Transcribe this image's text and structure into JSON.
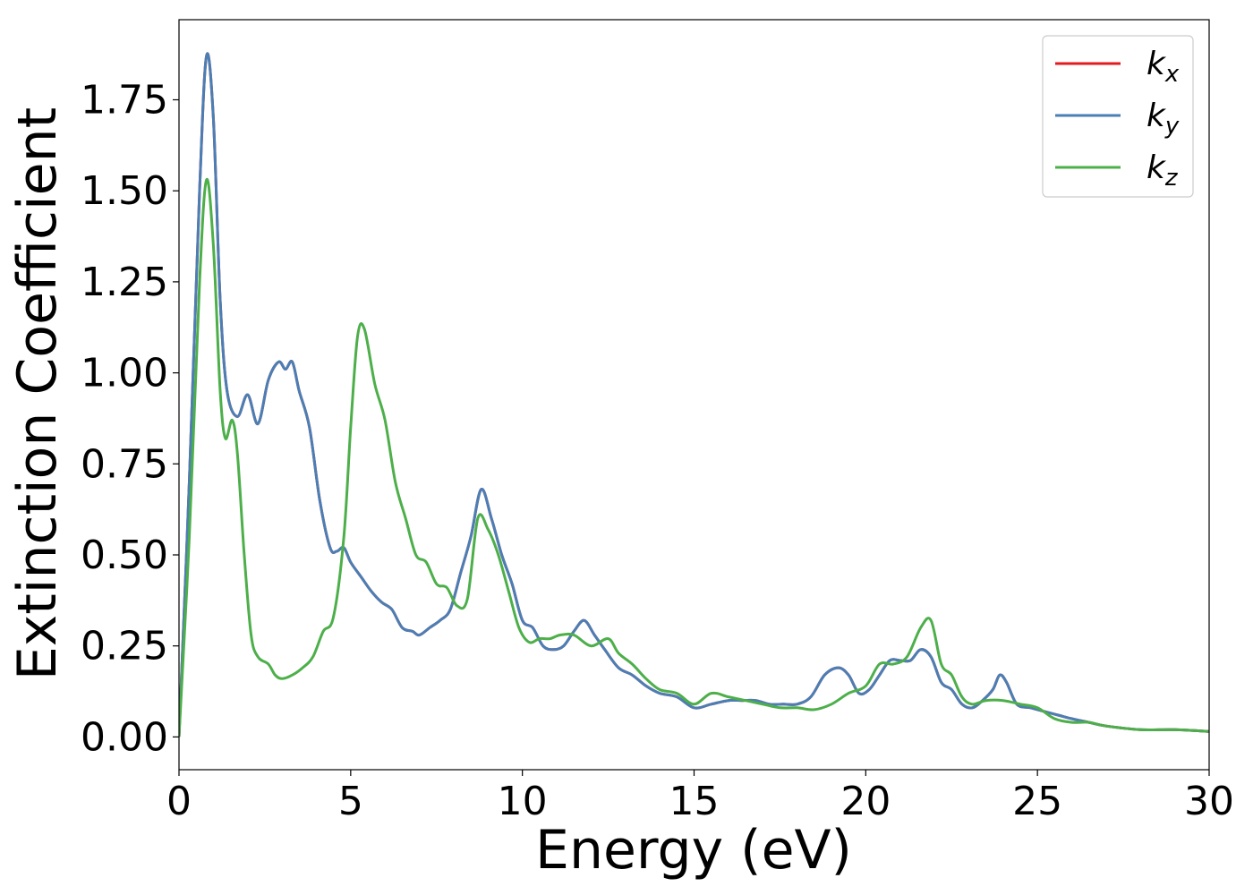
{
  "chart_data": {
    "type": "line",
    "title": "",
    "xlabel": "Energy (eV)",
    "ylabel": "Extinction Coefficient",
    "xlim": [
      0,
      30
    ],
    "ylim": [
      -0.09,
      1.97
    ],
    "xticks": [
      0,
      5,
      10,
      15,
      20,
      25,
      30
    ],
    "xtick_labels": [
      "0",
      "5",
      "10",
      "15",
      "20",
      "25",
      "30"
    ],
    "yticks": [
      0.0,
      0.25,
      0.5,
      0.75,
      1.0,
      1.25,
      1.5,
      1.75
    ],
    "ytick_labels": [
      "0.00",
      "0.25",
      "0.50",
      "0.75",
      "1.00",
      "1.25",
      "1.50",
      "1.75"
    ],
    "grid": false,
    "legend_position": "top-right",
    "series": [
      {
        "name": "k",
        "subscript": "x",
        "color": "#e41a1c",
        "x": [
          0,
          0.3,
          0.6,
          0.8,
          1.0,
          1.2,
          1.4,
          1.7,
          2.0,
          2.3,
          2.6,
          2.9,
          3.1,
          3.3,
          3.5,
          3.8,
          4.1,
          4.4,
          4.6,
          4.8,
          5.0,
          5.3,
          5.6,
          5.9,
          6.2,
          6.5,
          6.8,
          7.0,
          7.3,
          7.6,
          7.9,
          8.2,
          8.5,
          8.8,
          9.1,
          9.4,
          9.7,
          10.0,
          10.3,
          10.6,
          10.9,
          11.2,
          11.5,
          11.8,
          12.1,
          12.4,
          12.8,
          13.2,
          13.6,
          14.0,
          14.5,
          15.0,
          15.5,
          16.0,
          16.4,
          16.8,
          17.2,
          17.6,
          18.0,
          18.4,
          18.8,
          19.2,
          19.5,
          19.8,
          20.1,
          20.4,
          20.7,
          21.0,
          21.3,
          21.6,
          21.9,
          22.2,
          22.5,
          22.8,
          23.1,
          23.4,
          23.7,
          23.9,
          24.1,
          24.4,
          24.8,
          25.2,
          25.6,
          26.0,
          26.5,
          27.0,
          28.0,
          29.0,
          30.0
        ],
        "y": [
          0.0,
          0.7,
          1.5,
          1.87,
          1.7,
          1.2,
          0.95,
          0.88,
          0.94,
          0.86,
          0.98,
          1.03,
          1.01,
          1.03,
          0.95,
          0.85,
          0.65,
          0.52,
          0.51,
          0.52,
          0.48,
          0.44,
          0.4,
          0.37,
          0.35,
          0.3,
          0.29,
          0.28,
          0.3,
          0.32,
          0.35,
          0.45,
          0.55,
          0.68,
          0.6,
          0.5,
          0.42,
          0.32,
          0.3,
          0.25,
          0.24,
          0.25,
          0.29,
          0.32,
          0.28,
          0.24,
          0.19,
          0.17,
          0.14,
          0.12,
          0.11,
          0.08,
          0.09,
          0.1,
          0.1,
          0.1,
          0.09,
          0.09,
          0.09,
          0.11,
          0.17,
          0.19,
          0.17,
          0.12,
          0.13,
          0.17,
          0.21,
          0.21,
          0.21,
          0.24,
          0.22,
          0.15,
          0.13,
          0.09,
          0.08,
          0.1,
          0.13,
          0.17,
          0.15,
          0.09,
          0.08,
          0.07,
          0.06,
          0.05,
          0.04,
          0.03,
          0.02,
          0.02,
          0.015
        ]
      },
      {
        "name": "k",
        "subscript": "y",
        "color": "#4a7fb5",
        "x": [
          0,
          0.3,
          0.6,
          0.8,
          1.0,
          1.2,
          1.4,
          1.7,
          2.0,
          2.3,
          2.6,
          2.9,
          3.1,
          3.3,
          3.5,
          3.8,
          4.1,
          4.4,
          4.6,
          4.8,
          5.0,
          5.3,
          5.6,
          5.9,
          6.2,
          6.5,
          6.8,
          7.0,
          7.3,
          7.6,
          7.9,
          8.2,
          8.5,
          8.8,
          9.1,
          9.4,
          9.7,
          10.0,
          10.3,
          10.6,
          10.9,
          11.2,
          11.5,
          11.8,
          12.1,
          12.4,
          12.8,
          13.2,
          13.6,
          14.0,
          14.5,
          15.0,
          15.5,
          16.0,
          16.4,
          16.8,
          17.2,
          17.6,
          18.0,
          18.4,
          18.8,
          19.2,
          19.5,
          19.8,
          20.1,
          20.4,
          20.7,
          21.0,
          21.3,
          21.6,
          21.9,
          22.2,
          22.5,
          22.8,
          23.1,
          23.4,
          23.7,
          23.9,
          24.1,
          24.4,
          24.8,
          25.2,
          25.6,
          26.0,
          26.5,
          27.0,
          28.0,
          29.0,
          30.0
        ],
        "y": [
          0.0,
          0.7,
          1.5,
          1.87,
          1.7,
          1.2,
          0.95,
          0.88,
          0.94,
          0.86,
          0.98,
          1.03,
          1.01,
          1.03,
          0.95,
          0.85,
          0.65,
          0.52,
          0.51,
          0.52,
          0.48,
          0.44,
          0.4,
          0.37,
          0.35,
          0.3,
          0.29,
          0.28,
          0.3,
          0.32,
          0.35,
          0.45,
          0.55,
          0.68,
          0.6,
          0.5,
          0.42,
          0.32,
          0.3,
          0.25,
          0.24,
          0.25,
          0.29,
          0.32,
          0.28,
          0.24,
          0.19,
          0.17,
          0.14,
          0.12,
          0.11,
          0.08,
          0.09,
          0.1,
          0.1,
          0.1,
          0.09,
          0.09,
          0.09,
          0.11,
          0.17,
          0.19,
          0.17,
          0.12,
          0.13,
          0.17,
          0.21,
          0.21,
          0.21,
          0.24,
          0.22,
          0.15,
          0.13,
          0.09,
          0.08,
          0.1,
          0.13,
          0.17,
          0.15,
          0.09,
          0.08,
          0.07,
          0.06,
          0.05,
          0.04,
          0.03,
          0.02,
          0.02,
          0.015
        ]
      },
      {
        "name": "k",
        "subscript": "z",
        "color": "#4daf4a",
        "x": [
          0,
          0.3,
          0.6,
          0.8,
          1.0,
          1.2,
          1.35,
          1.55,
          1.7,
          1.9,
          2.1,
          2.3,
          2.6,
          2.8,
          3.0,
          3.3,
          3.6,
          3.9,
          4.2,
          4.5,
          4.8,
          5.0,
          5.2,
          5.4,
          5.7,
          6.0,
          6.3,
          6.6,
          6.9,
          7.2,
          7.5,
          7.8,
          8.1,
          8.4,
          8.7,
          9.0,
          9.3,
          9.6,
          9.9,
          10.2,
          10.5,
          10.8,
          11.1,
          11.5,
          12.0,
          12.5,
          12.8,
          13.2,
          13.6,
          14.0,
          14.5,
          15.0,
          15.5,
          16.0,
          16.5,
          17.0,
          17.5,
          18.0,
          18.5,
          19.0,
          19.5,
          20.0,
          20.4,
          20.8,
          21.2,
          21.6,
          21.9,
          22.2,
          22.5,
          22.8,
          23.1,
          23.5,
          24.0,
          24.5,
          25.0,
          25.5,
          26.0,
          26.5,
          27.0,
          28.0,
          29.0,
          30.0
        ],
        "y": [
          0.0,
          0.55,
          1.25,
          1.53,
          1.35,
          0.95,
          0.82,
          0.87,
          0.78,
          0.5,
          0.28,
          0.22,
          0.2,
          0.17,
          0.16,
          0.17,
          0.19,
          0.22,
          0.29,
          0.33,
          0.55,
          0.85,
          1.1,
          1.12,
          0.97,
          0.87,
          0.7,
          0.6,
          0.5,
          0.48,
          0.42,
          0.41,
          0.36,
          0.38,
          0.6,
          0.57,
          0.5,
          0.4,
          0.3,
          0.26,
          0.27,
          0.27,
          0.28,
          0.28,
          0.25,
          0.27,
          0.23,
          0.2,
          0.16,
          0.13,
          0.12,
          0.09,
          0.12,
          0.11,
          0.1,
          0.09,
          0.08,
          0.08,
          0.075,
          0.09,
          0.12,
          0.14,
          0.2,
          0.2,
          0.22,
          0.3,
          0.32,
          0.2,
          0.17,
          0.11,
          0.09,
          0.1,
          0.1,
          0.09,
          0.08,
          0.05,
          0.04,
          0.04,
          0.03,
          0.02,
          0.02,
          0.015
        ]
      }
    ]
  }
}
